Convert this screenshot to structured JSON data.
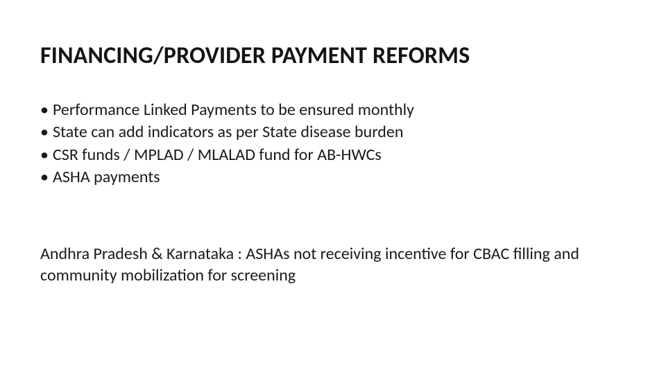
{
  "slide": {
    "title": "FINANCING/PROVIDER PAYMENT REFORMS",
    "bullets": [
      "Performance Linked Payments to be ensured monthly",
      "State can add indicators as per State disease burden",
      "CSR funds / MPLAD / MLALAD fund for AB-HWCs",
      "ASHA payments"
    ],
    "note": "Andhra Pradesh & Karnataka : ASHAs not receiving incentive for CBAC filling and community mobilization for screening",
    "colors": {
      "background": "#ffffff",
      "title_text": "#141414",
      "body_text": "#1a1a1a"
    },
    "typography": {
      "title_fontsize": 34,
      "title_weight": 700,
      "body_fontsize": 24,
      "body_weight": 400,
      "font_family": "Calibri"
    }
  }
}
